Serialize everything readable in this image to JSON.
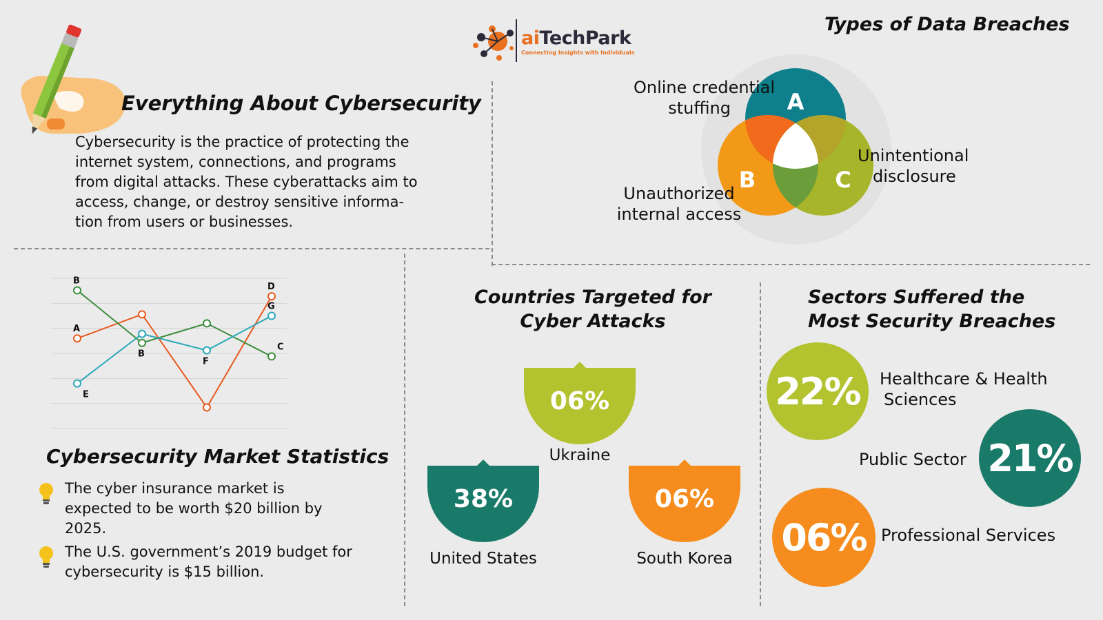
{
  "brand": {
    "name_prefix": "ai",
    "name_main": "TechPark",
    "tagline": "Connecting Insights with Individuals",
    "colors": {
      "orange": "#e8701f",
      "dark": "#2a2a3a"
    }
  },
  "about": {
    "title": "Everything About Cybersecurity",
    "lines": [
      "Cybersecurity is the practice of protecting the",
      "internet system, connections, and programs",
      "from digital attacks. These cyberattacks aim to",
      "access, change, or destroy sensitive informa-",
      "tion from users or businesses."
    ]
  },
  "breaches": {
    "title": "Types of Data Breaches",
    "a": {
      "letter": "A",
      "line1": "Online credential",
      "line2": "stuffing",
      "color": "#0f7f8c"
    },
    "b": {
      "letter": "B",
      "line1": "Unauthorized",
      "line2": "internal access",
      "color": "#f29a17"
    },
    "c": {
      "letter": "C",
      "line1": "Unintentional",
      "line2": "disclosure",
      "color": "#a7b52a"
    }
  },
  "market": {
    "title": "Cybersecurity Market Statistics",
    "bullets": [
      [
        "The cyber insurance market is",
        "expected to be worth $20 billion by",
        "2025."
      ],
      [
        "The U.S. government’s 2019 budget for",
        "cybersecurity is $15 billion."
      ]
    ],
    "icon": "lightbulb-icon"
  },
  "chart_data": {
    "type": "line",
    "title": "",
    "x": [
      1,
      2,
      3,
      4
    ],
    "series": [
      {
        "color": "#e8591e",
        "values": [
          60,
          76,
          14,
          88
        ]
      },
      {
        "color": "#3c8c3c",
        "values": [
          92,
          57,
          70,
          48
        ]
      },
      {
        "color": "#2aa8b8",
        "values": [
          30,
          63,
          52,
          75
        ]
      }
    ],
    "point_labels": [
      {
        "text": "A",
        "series": 0,
        "point": 0
      },
      {
        "text": "D",
        "series": 0,
        "point": 3
      },
      {
        "text": "B",
        "series": 1,
        "point": 0
      },
      {
        "text": "B",
        "series": 1,
        "point": 1
      },
      {
        "text": "C",
        "series": 1,
        "point": 3
      },
      {
        "text": "E",
        "series": 2,
        "point": 0
      },
      {
        "text": "F",
        "series": 2,
        "point": 2
      },
      {
        "text": "G",
        "series": 2,
        "point": 3
      }
    ],
    "ylim": [
      0,
      100
    ],
    "grid": true
  },
  "countries": {
    "title_line1": "Countries Targeted for",
    "title_line2": "Cyber Attacks",
    "items": [
      {
        "pct": "06%",
        "name": "Ukraine",
        "color": "#b3c22f"
      },
      {
        "pct": "38%",
        "name": "United States",
        "color": "#1a7a6a"
      },
      {
        "pct": "06%",
        "name": "South Korea",
        "color": "#f58c1d"
      }
    ]
  },
  "sectors": {
    "title_line1": "Sectors Suffered the",
    "title_line2": "Most Security Breaches",
    "items": [
      {
        "pct": "22%",
        "line1": "Healthcare & Health",
        "line2": "Sciences",
        "color": "#b3c22f"
      },
      {
        "pct": "21%",
        "line1": "Public Sector",
        "line2": "",
        "color": "#1a7a6a"
      },
      {
        "pct": "06%",
        "line1": "Professional Services",
        "line2": "",
        "color": "#f58c1d"
      }
    ]
  }
}
